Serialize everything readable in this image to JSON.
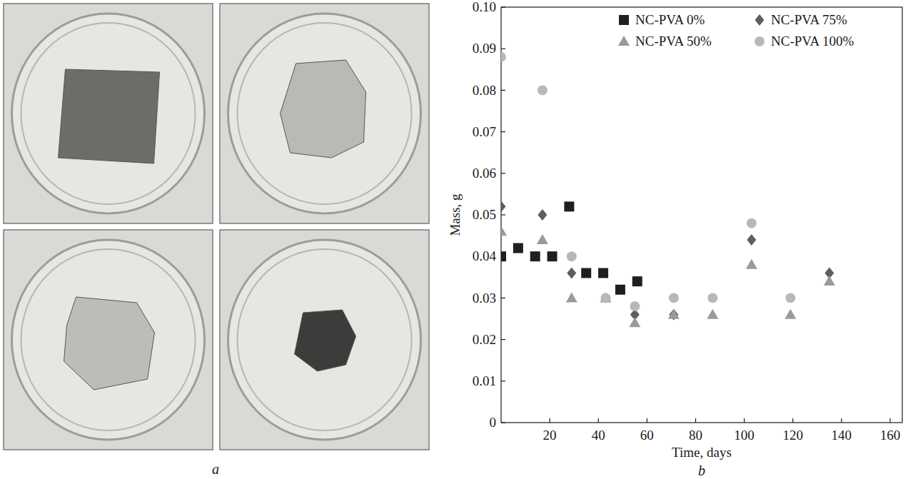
{
  "figure": {
    "panel_labels": [
      "a",
      "b"
    ]
  },
  "chart_data": {
    "type": "scatter",
    "xlabel": "Time, days",
    "ylabel": "Mass, g",
    "xlim": [
      0,
      165
    ],
    "xticks": [
      20,
      40,
      60,
      80,
      100,
      120,
      140,
      160
    ],
    "ylim": [
      0,
      0.1
    ],
    "yticks": [
      0,
      0.01,
      0.02,
      0.03,
      0.04,
      0.05,
      0.06,
      0.07,
      0.08,
      0.09,
      {
        "value": 0.1,
        "label": "0.10"
      }
    ],
    "grid": false,
    "legend": "upper right",
    "series": [
      {
        "name": "NC-PVA 0%",
        "color": "#1f1f1f",
        "marker": "square",
        "x": [
          0,
          7,
          14,
          21,
          28,
          35,
          42,
          49,
          56
        ],
        "values": [
          0.04,
          0.042,
          0.04,
          0.04,
          0.052,
          0.036,
          0.036,
          0.032,
          0.034
        ]
      },
      {
        "name": "NC-PVA 75%",
        "color": "#5e5e5e",
        "marker": "diamond",
        "x": [
          0,
          17,
          29,
          55,
          71,
          103,
          135
        ],
        "values": [
          0.052,
          0.05,
          0.036,
          0.026,
          0.026,
          0.044,
          0.036
        ]
      },
      {
        "name": "NC-PVA 50%",
        "color": "#9a9a9a",
        "marker": "triangle",
        "x": [
          0,
          17,
          29,
          43,
          55,
          71,
          87,
          103,
          119,
          135
        ],
        "values": [
          0.046,
          0.044,
          0.03,
          0.03,
          0.024,
          0.026,
          0.026,
          0.038,
          0.026,
          0.034
        ]
      },
      {
        "name": "NC-PVA 100%",
        "color": "#b8b8b8",
        "marker": "circle",
        "x": [
          0,
          17,
          29,
          43,
          55,
          71,
          87,
          103,
          119
        ],
        "values": [
          0.088,
          0.08,
          0.04,
          0.03,
          0.028,
          0.03,
          0.03,
          0.048,
          0.03
        ]
      }
    ]
  }
}
